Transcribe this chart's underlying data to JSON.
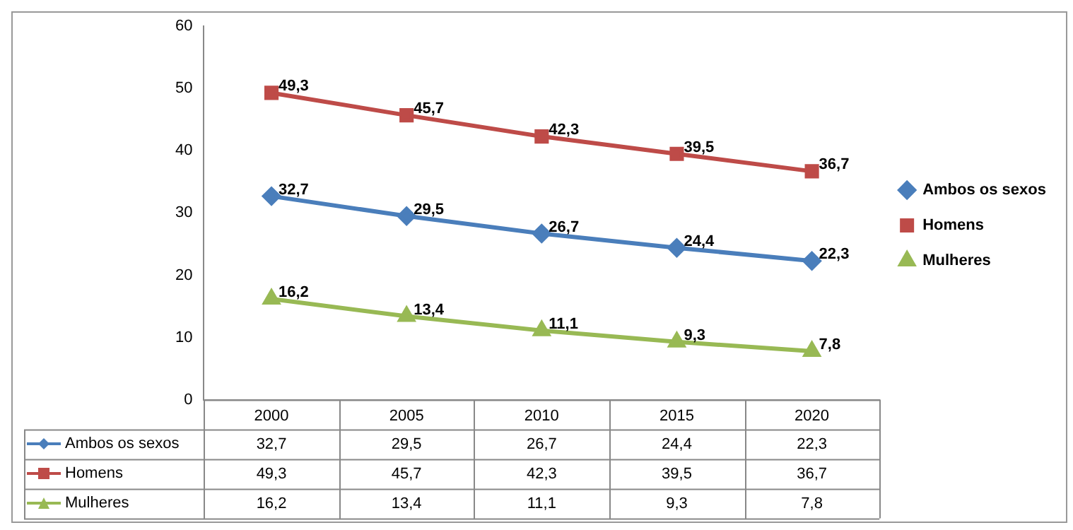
{
  "chart_data": {
    "type": "line",
    "categories": [
      "2000",
      "2005",
      "2010",
      "2015",
      "2020"
    ],
    "series": [
      {
        "name": "Ambos os sexos",
        "color": "#4a7ebb",
        "marker": "diamond",
        "values": [
          32.7,
          29.5,
          26.7,
          24.4,
          22.3
        ],
        "value_labels": [
          "32,7",
          "29,5",
          "26,7",
          "24,4",
          "22,3"
        ]
      },
      {
        "name": "Homens",
        "color": "#be4b48",
        "marker": "square",
        "values": [
          49.3,
          45.7,
          42.3,
          39.5,
          36.7
        ],
        "value_labels": [
          "49,3",
          "45,7",
          "42,3",
          "39,5",
          "36,7"
        ]
      },
      {
        "name": "Mulheres",
        "color": "#98b954",
        "marker": "triangle",
        "values": [
          16.2,
          13.4,
          11.1,
          9.3,
          7.8
        ],
        "value_labels": [
          "16,2",
          "13,4",
          "11,1",
          "9,3",
          "7,8"
        ]
      }
    ],
    "ylim": [
      0,
      60
    ],
    "yticks": [
      0,
      10,
      20,
      30,
      40,
      50,
      60
    ],
    "grid": false,
    "legend": "right"
  }
}
